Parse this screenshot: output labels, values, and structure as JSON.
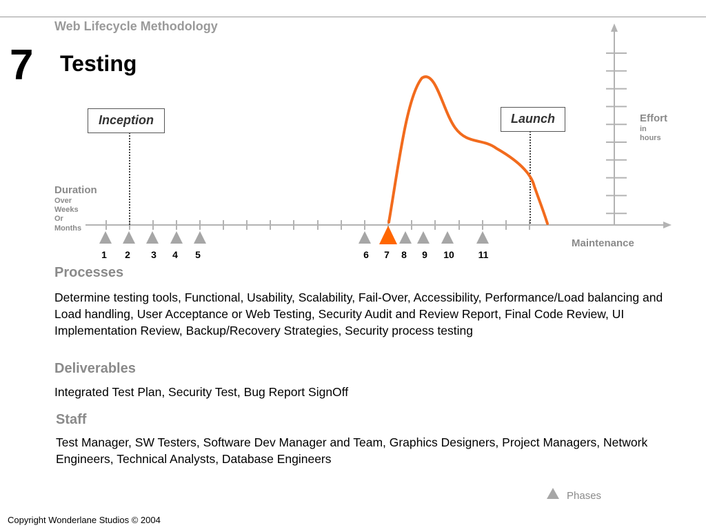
{
  "header": {
    "methodology": "Web Lifecycle Methodology",
    "phase_number": "7",
    "title": "Testing"
  },
  "diagram": {
    "milestones": {
      "inception": "Inception",
      "launch": "Launch"
    },
    "y_axis": {
      "label": "Effort",
      "sublabel_1": "in",
      "sublabel_2": "hours"
    },
    "x_axis": {
      "label": "Duration",
      "sublabel_1": "Over",
      "sublabel_2": "Weeks",
      "sublabel_3": "Or",
      "sublabel_4": "Months",
      "end_label": "Maintenance"
    },
    "phases": [
      {
        "label": "1",
        "active": false
      },
      {
        "label": "2",
        "active": false
      },
      {
        "label": "3",
        "active": false
      },
      {
        "label": "4",
        "active": false
      },
      {
        "label": "5",
        "active": false
      },
      {
        "label": "6",
        "active": false
      },
      {
        "label": "7",
        "active": true
      },
      {
        "label": "8",
        "active": false
      },
      {
        "label": "9",
        "active": false
      },
      {
        "label": "10",
        "active": false
      },
      {
        "label": "11",
        "active": false
      }
    ],
    "colors": {
      "axis": "#b3b3b3",
      "phase_marker": "#a6a6a6",
      "active_phase": "#ff6600",
      "effort_curve": "#f26b1d"
    }
  },
  "processes": {
    "title": "Processes",
    "body": "Determine testing tools, Functional, Usability, Scalability, Fail-Over, Accessibility, Performance/Load balancing and Load handling, User Acceptance or Web Testing, Security Audit and Review Report, Final Code Review, UI Implementation Review, Backup/Recovery Strategies, Security process testing"
  },
  "deliverables": {
    "title": "Deliverables",
    "body": "Integrated Test Plan, Security Test, Bug Report SignOff"
  },
  "staff": {
    "title": "Staff",
    "body": "Test Manager, SW Testers, Software Dev Manager and Team, Graphics Designers, Project Managers, Network Engineers, Technical Analysts, Database Engineers"
  },
  "legend": {
    "phases_label": "Phases"
  },
  "footer": {
    "copyright": "Copyright Wonderlane Studios © 2004"
  }
}
